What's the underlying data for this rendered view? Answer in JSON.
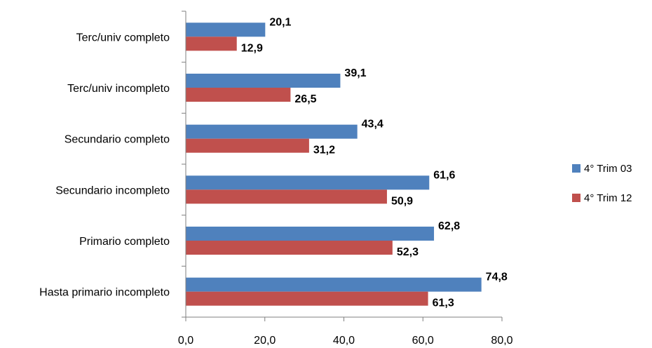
{
  "chart_data": {
    "type": "bar",
    "orientation": "horizontal",
    "categories": [
      "Terc/univ completo",
      "Terc/univ incompleto",
      "Secundario completo",
      "Secundario incompleto",
      "Primario completo",
      "Hasta primario incompleto"
    ],
    "series": [
      {
        "name": "4° Trim 03",
        "color": "#4f81bd",
        "values": [
          20.1,
          39.1,
          43.4,
          61.6,
          62.8,
          74.8
        ]
      },
      {
        "name": "4° Trim 12",
        "color": "#c0504d",
        "values": [
          12.9,
          26.5,
          31.2,
          50.9,
          52.3,
          61.3
        ]
      }
    ],
    "data_labels": [
      [
        "20,1",
        "39,1",
        "43,4",
        "61,6",
        "62,8",
        "74,8"
      ],
      [
        "12,9",
        "26,5",
        "31,2",
        "50,9",
        "52,3",
        "61,3"
      ]
    ],
    "x_ticks": [
      0,
      20,
      40,
      60,
      80
    ],
    "x_tick_labels": [
      "0,0",
      "20,0",
      "40,0",
      "60,0",
      "80,0"
    ],
    "xlim": [
      0,
      80
    ],
    "grid": false,
    "legend_position": "right"
  }
}
